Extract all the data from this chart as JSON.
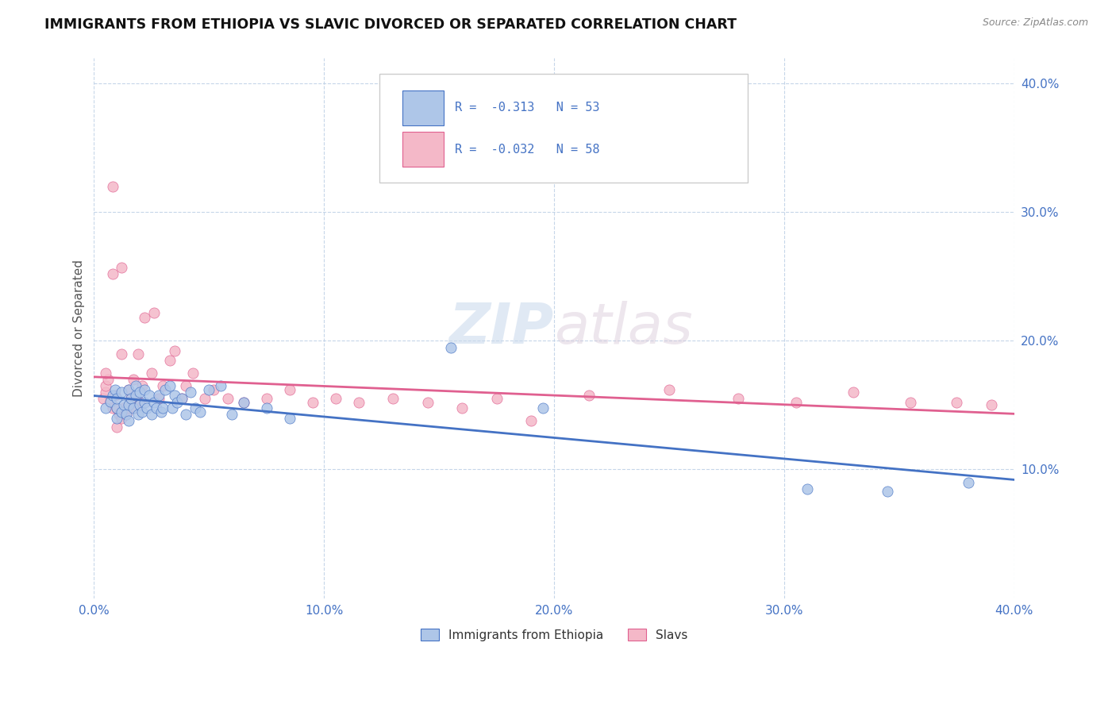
{
  "title": "IMMIGRANTS FROM ETHIOPIA VS SLAVIC DIVORCED OR SEPARATED CORRELATION CHART",
  "source": "Source: ZipAtlas.com",
  "ylabel": "Divorced or Separated",
  "xlim": [
    0.0,
    0.4
  ],
  "ylim": [
    0.0,
    0.42
  ],
  "ytick_labels": [
    "10.0%",
    "20.0%",
    "30.0%",
    "40.0%"
  ],
  "ytick_values": [
    0.1,
    0.2,
    0.3,
    0.4
  ],
  "xtick_labels": [
    "0.0%",
    "10.0%",
    "20.0%",
    "30.0%",
    "40.0%"
  ],
  "xtick_values": [
    0.0,
    0.1,
    0.2,
    0.3,
    0.4
  ],
  "watermark_zip": "ZIP",
  "watermark_atlas": "atlas",
  "legend_r1": "R =  -0.313   N = 53",
  "legend_r2": "R =  -0.032   N = 58",
  "legend_color1": "#aec6e8",
  "legend_color2": "#f4b8c8",
  "scatter_color1": "#aec6e8",
  "scatter_color2": "#f4b8c8",
  "line_color1": "#4472c4",
  "line_color2": "#e06090",
  "blue_x": [
    0.005,
    0.007,
    0.008,
    0.009,
    0.01,
    0.01,
    0.01,
    0.012,
    0.012,
    0.013,
    0.014,
    0.015,
    0.015,
    0.015,
    0.016,
    0.017,
    0.018,
    0.018,
    0.019,
    0.02,
    0.02,
    0.021,
    0.022,
    0.022,
    0.023,
    0.024,
    0.025,
    0.026,
    0.027,
    0.028,
    0.029,
    0.03,
    0.031,
    0.033,
    0.034,
    0.035,
    0.036,
    0.038,
    0.04,
    0.042,
    0.044,
    0.046,
    0.05,
    0.055,
    0.06,
    0.065,
    0.075,
    0.085,
    0.155,
    0.195,
    0.31,
    0.345,
    0.38
  ],
  "blue_y": [
    0.148,
    0.153,
    0.158,
    0.162,
    0.14,
    0.148,
    0.155,
    0.145,
    0.16,
    0.15,
    0.143,
    0.138,
    0.15,
    0.162,
    0.155,
    0.148,
    0.158,
    0.165,
    0.143,
    0.15,
    0.16,
    0.145,
    0.152,
    0.162,
    0.148,
    0.158,
    0.143,
    0.152,
    0.148,
    0.158,
    0.145,
    0.148,
    0.162,
    0.165,
    0.148,
    0.158,
    0.152,
    0.155,
    0.143,
    0.16,
    0.148,
    0.145,
    0.162,
    0.165,
    0.143,
    0.152,
    0.148,
    0.14,
    0.195,
    0.148,
    0.085,
    0.083,
    0.09
  ],
  "pink_x": [
    0.004,
    0.005,
    0.005,
    0.006,
    0.007,
    0.008,
    0.008,
    0.009,
    0.01,
    0.01,
    0.011,
    0.012,
    0.012,
    0.013,
    0.014,
    0.015,
    0.015,
    0.016,
    0.017,
    0.018,
    0.019,
    0.02,
    0.021,
    0.022,
    0.025,
    0.026,
    0.028,
    0.03,
    0.033,
    0.035,
    0.038,
    0.04,
    0.043,
    0.048,
    0.052,
    0.058,
    0.065,
    0.075,
    0.085,
    0.095,
    0.105,
    0.115,
    0.13,
    0.145,
    0.16,
    0.175,
    0.19,
    0.215,
    0.25,
    0.28,
    0.305,
    0.33,
    0.355,
    0.375,
    0.39,
    0.005,
    0.008,
    0.012
  ],
  "pink_y": [
    0.155,
    0.16,
    0.165,
    0.17,
    0.153,
    0.148,
    0.32,
    0.158,
    0.133,
    0.148,
    0.143,
    0.14,
    0.257,
    0.148,
    0.143,
    0.148,
    0.162,
    0.155,
    0.17,
    0.148,
    0.19,
    0.152,
    0.165,
    0.218,
    0.175,
    0.222,
    0.155,
    0.165,
    0.185,
    0.192,
    0.155,
    0.165,
    0.175,
    0.155,
    0.162,
    0.155,
    0.152,
    0.155,
    0.162,
    0.152,
    0.155,
    0.152,
    0.155,
    0.152,
    0.148,
    0.155,
    0.138,
    0.158,
    0.162,
    0.155,
    0.152,
    0.16,
    0.152,
    0.152,
    0.15,
    0.175,
    0.252,
    0.19
  ]
}
